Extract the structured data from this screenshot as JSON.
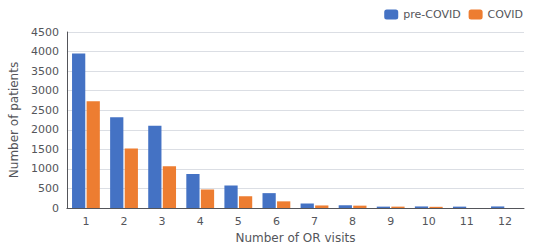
{
  "chart_data": {
    "type": "bar",
    "categories": [
      1,
      2,
      3,
      4,
      5,
      6,
      7,
      8,
      9,
      10,
      11,
      12
    ],
    "series": [
      {
        "name": "pre-COVID",
        "color": "#4472C4",
        "values": [
          3950,
          2320,
          2100,
          870,
          575,
          380,
          115,
          70,
          35,
          40,
          35,
          40
        ]
      },
      {
        "name": "COVID",
        "color": "#ED7D31",
        "values": [
          2730,
          1520,
          1070,
          470,
          300,
          170,
          65,
          60,
          35,
          30,
          0,
          0
        ]
      }
    ],
    "xlabel": "Number of OR visits",
    "ylabel": "Number of patients",
    "ylim": [
      0,
      4500
    ],
    "yticks": [
      0,
      500,
      1000,
      1500,
      2000,
      2500,
      3000,
      3500,
      4000,
      4500
    ],
    "grid": true,
    "legend": "upper right"
  }
}
